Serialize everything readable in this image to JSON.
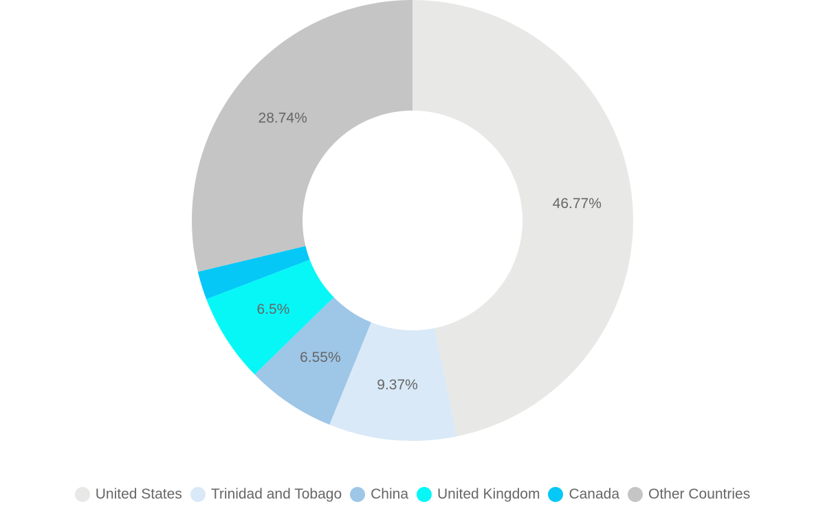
{
  "chart_data": {
    "type": "pie",
    "variant": "donut",
    "title": "",
    "categories": [
      "United States",
      "Trinidad and Tobago",
      "China",
      "United Kingdom",
      "Canada",
      "Other Countries"
    ],
    "values": [
      46.77,
      9.37,
      6.55,
      6.5,
      2.07,
      28.74
    ],
    "data_labels": [
      "46.77%",
      "9.37%",
      "6.55%",
      "6.5%",
      "",
      "28.74%"
    ],
    "colors": [
      "#e8e9e7",
      "#d9e9f7",
      "#9ec6e7",
      "#07f7f7",
      "#05c8f7",
      "#c5c5c5"
    ],
    "legend_position": "bottom"
  }
}
